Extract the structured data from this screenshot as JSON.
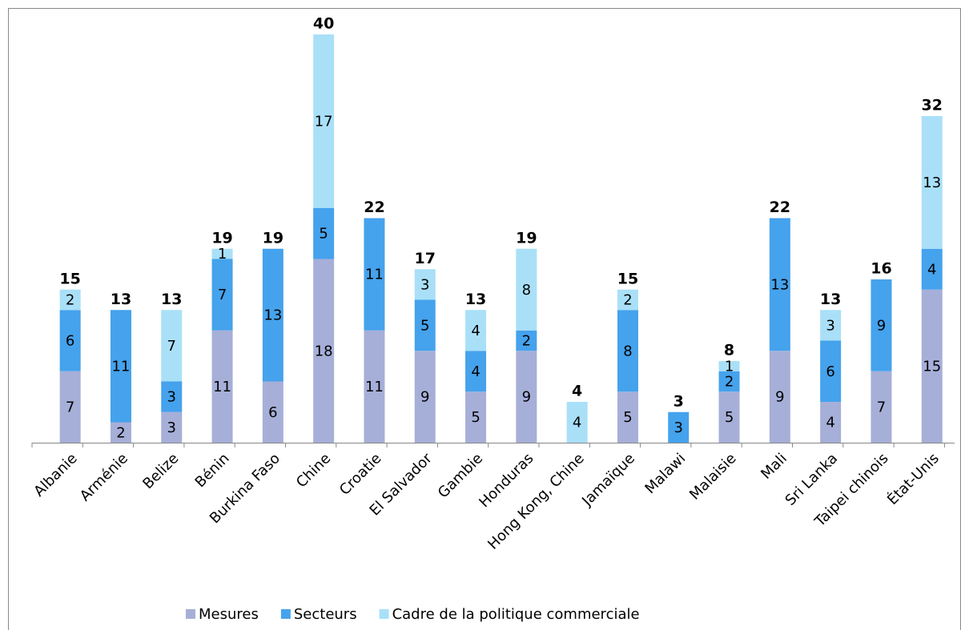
{
  "chart_data": {
    "type": "stacked_bar",
    "categories": [
      "Albanie",
      "Arménie",
      "Belize",
      "Bénin",
      "Burkina Faso",
      "Chine",
      "Croatie",
      "El Salvador",
      "Gambie",
      "Honduras",
      "Hong Kong, Chine",
      "Jamaïque",
      "Malawi",
      "Malaisie",
      "Mali",
      "Sri Lanka",
      "Taipei chinois",
      "État-Unis"
    ],
    "series": [
      {
        "name": "Mesures",
        "color": "#a6afd8",
        "values": [
          7,
          2,
          3,
          11,
          6,
          18,
          11,
          9,
          5,
          9,
          null,
          5,
          null,
          5,
          9,
          4,
          7,
          15
        ]
      },
      {
        "name": "Secteurs",
        "color": "#45a2ec",
        "values": [
          6,
          11,
          3,
          7,
          13,
          5,
          11,
          5,
          4,
          2,
          null,
          8,
          3,
          2,
          13,
          6,
          9,
          4
        ]
      },
      {
        "name": "Cadre de la politique commerciale",
        "color": "#a9e0f8",
        "values": [
          2,
          null,
          7,
          1,
          null,
          17,
          null,
          3,
          4,
          8,
          4,
          2,
          null,
          1,
          null,
          3,
          null,
          13
        ]
      }
    ],
    "totals": [
      15,
      13,
      13,
      19,
      19,
      40,
      22,
      17,
      13,
      19,
      4,
      15,
      3,
      8,
      22,
      13,
      16,
      32
    ],
    "ylim": [
      0,
      40
    ]
  }
}
